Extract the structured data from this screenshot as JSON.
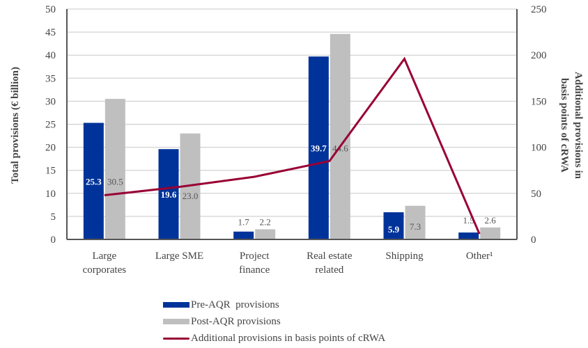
{
  "chart_data": {
    "type": "bar",
    "title": "",
    "categories": [
      "Large corporates",
      "Large SME",
      "Project finance",
      "Real estate related",
      "Shipping",
      "Other¹"
    ],
    "category_lines": [
      [
        "Large",
        "corporates"
      ],
      [
        "Large SME"
      ],
      [
        "Project",
        "finance"
      ],
      [
        "Real estate",
        "related"
      ],
      [
        "Shipping"
      ],
      [
        "Other¹"
      ]
    ],
    "series": [
      {
        "name": "Pre-AQR  provisions",
        "type": "bar",
        "axis": "left",
        "color": "#003399",
        "values": [
          25.3,
          19.6,
          1.7,
          39.7,
          5.9,
          1.5
        ],
        "labels": [
          "25.3",
          "19.6",
          "1.7",
          "39.7",
          "5.9",
          "1.5"
        ]
      },
      {
        "name": "Post-AQR provisions",
        "type": "bar",
        "axis": "left",
        "color": "#bfbfbf",
        "values": [
          30.5,
          23.0,
          2.2,
          44.6,
          7.3,
          2.6
        ],
        "labels": [
          "30.5",
          "23.0",
          "2.2",
          "44.6",
          "7.3",
          "2.6"
        ]
      },
      {
        "name": "Additional provisions in basis points of cRWA",
        "type": "line",
        "axis": "right",
        "color": "#990033",
        "values": [
          48,
          57,
          68,
          85,
          196,
          6
        ]
      }
    ],
    "ylabel": "Total provisions (€ billion)",
    "y2label_lines": [
      "Additional provisions in",
      "basis points of cRWA"
    ],
    "ylim": [
      0,
      50
    ],
    "y2lim": [
      0,
      250
    ],
    "yticks": [
      0,
      5,
      10,
      15,
      20,
      25,
      30,
      35,
      40,
      45,
      50
    ],
    "y2ticks": [
      0,
      50,
      100,
      150,
      200,
      250
    ],
    "grid": true,
    "legend_position": "bottom"
  }
}
